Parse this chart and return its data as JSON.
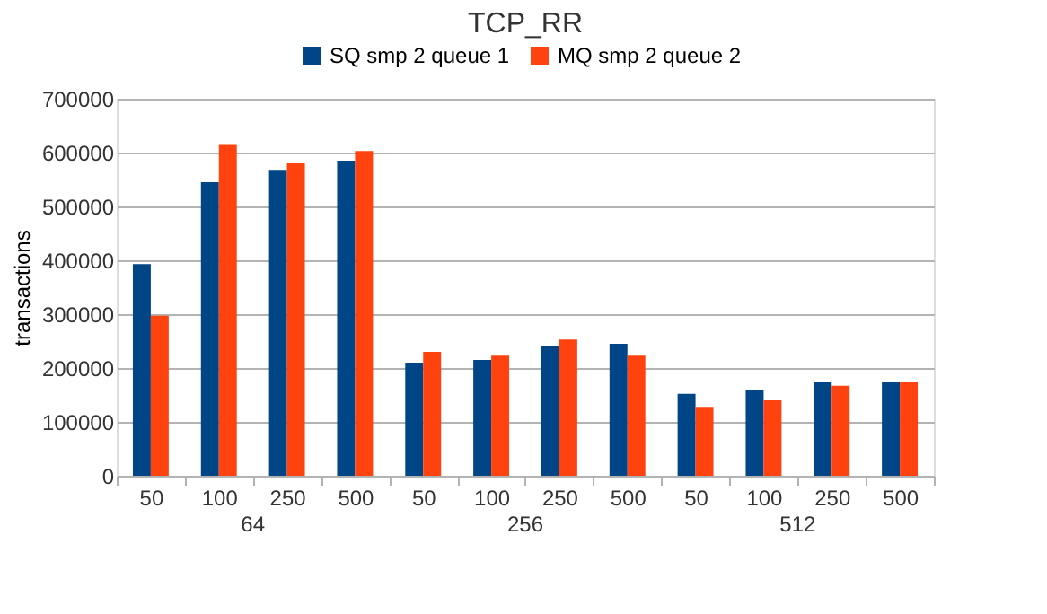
{
  "chart_data": {
    "type": "bar",
    "title": "TCP_RR",
    "ylabel": "transactions",
    "categories": [
      "50",
      "100",
      "250",
      "500",
      "50",
      "100",
      "250",
      "500",
      "50",
      "100",
      "250",
      "500"
    ],
    "annotations": [
      "64",
      "256",
      "512"
    ],
    "series": [
      {
        "name": "SQ smp 2 queue 1",
        "color": "#004586",
        "values": [
          393000,
          545000,
          568000,
          585000,
          210000,
          215000,
          241000,
          245000,
          152000,
          160000,
          175000,
          175000
        ]
      },
      {
        "name": "MQ smp 2 queue 2",
        "color": "#ff420e",
        "values": [
          297000,
          616000,
          580000,
          603000,
          230000,
          223000,
          253000,
          223000,
          128000,
          140000,
          167000,
          175000
        ]
      }
    ],
    "ylim": [
      0,
      700000
    ],
    "yticks": [
      0,
      100000,
      200000,
      300000,
      400000,
      500000,
      600000,
      700000
    ],
    "grid": "y",
    "legend": "top"
  }
}
